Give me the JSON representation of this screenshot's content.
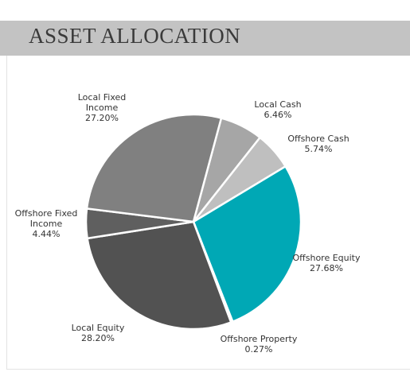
{
  "chart_data": {
    "type": "pie",
    "title": "ASSET ALLOCATION",
    "categories": [
      "Local Cash",
      "Offshore Cash",
      "Offshore Equity",
      "Offshore Property",
      "Local Equity",
      "Offshore Fixed Income",
      "Local Fixed Income"
    ],
    "values": [
      6.46,
      5.74,
      27.68,
      0.27,
      28.2,
      4.44,
      27.2
    ],
    "value_labels": [
      "6.46%",
      "5.74%",
      "27.68%",
      "0.27%",
      "28.20%",
      "4.44%",
      "27.20%"
    ],
    "colors": [
      "#a6a6a6",
      "#bfbfbf",
      "#00a8b5",
      "#d0d0d0",
      "#525252",
      "#5f5f5f",
      "#808080"
    ]
  }
}
